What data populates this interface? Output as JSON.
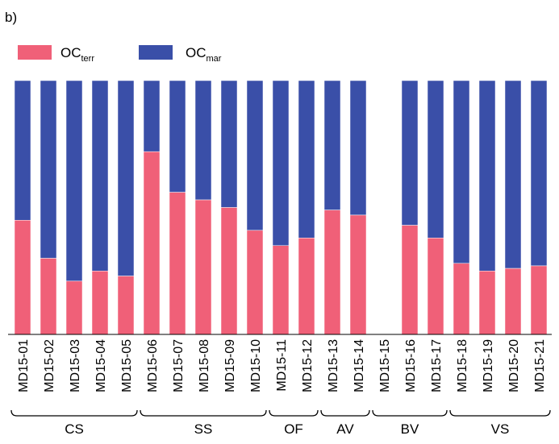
{
  "panel_label": "b)",
  "legend": [
    {
      "label": "OC",
      "sub": "terr",
      "color": "#F06078"
    },
    {
      "label": "OC",
      "sub": "mar",
      "color": "#3A4FA8"
    }
  ],
  "chart_data": {
    "type": "bar",
    "stacked": true,
    "normalized": true,
    "ylim": [
      0,
      1
    ],
    "grid": false,
    "legend_position": "top-left",
    "categories": [
      "MD15-01",
      "MD15-02",
      "MD15-03",
      "MD15-04",
      "MD15-05",
      "MD15-06",
      "MD15-07",
      "MD15-08",
      "MD15-09",
      "MD15-10",
      "MD15-11",
      "MD15-12",
      "MD15-13",
      "MD15-14",
      "MD15-15",
      "MD15-16",
      "MD15-17",
      "MD15-18",
      "MD15-19",
      "MD15-20",
      "MD15-21"
    ],
    "series": [
      {
        "name": "OC terr",
        "color": "#F06078",
        "values": [
          0.45,
          0.3,
          0.21,
          0.25,
          0.23,
          0.72,
          0.56,
          0.53,
          0.5,
          0.41,
          0.35,
          0.38,
          0.49,
          0.47,
          null,
          0.43,
          0.38,
          0.28,
          0.25,
          0.26,
          0.27
        ]
      },
      {
        "name": "OC mar",
        "color": "#3A4FA8",
        "values": [
          0.55,
          0.7,
          0.79,
          0.75,
          0.77,
          0.28,
          0.44,
          0.47,
          0.5,
          0.59,
          0.65,
          0.62,
          0.51,
          0.53,
          null,
          0.57,
          0.62,
          0.72,
          0.75,
          0.74,
          0.73
        ]
      }
    ],
    "groups": [
      {
        "label": "CS",
        "members": [
          "MD15-01",
          "MD15-02",
          "MD15-03",
          "MD15-04",
          "MD15-05"
        ]
      },
      {
        "label": "SS",
        "members": [
          "MD15-06",
          "MD15-07",
          "MD15-08",
          "MD15-09",
          "MD15-10"
        ]
      },
      {
        "label": "OF",
        "members": [
          "MD15-11",
          "MD15-12"
        ]
      },
      {
        "label": "AV",
        "members": [
          "MD15-13",
          "MD15-14"
        ]
      },
      {
        "label": "BV",
        "members": [
          "MD15-15",
          "MD15-16",
          "MD15-17"
        ]
      },
      {
        "label": "VS",
        "members": [
          "MD15-18",
          "MD15-19",
          "MD15-20",
          "MD15-21"
        ]
      }
    ]
  }
}
